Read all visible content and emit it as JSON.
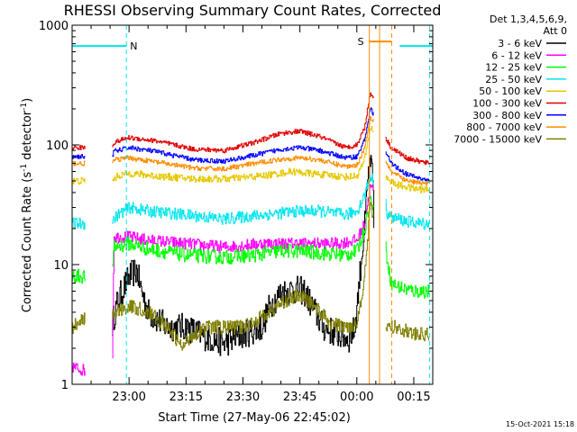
{
  "chart_data": {
    "type": "line",
    "title": "RHESSI Observing Summary Count Rates, Corrected",
    "xlabel": "Start Time (27-May-06 22:45:02)",
    "ylabel_main": "Corrected Count Rate (s",
    "ylabel_sup1": "-1",
    "ylabel_mid": " detector",
    "ylabel_sup2": "-1",
    "ylabel_end": ")",
    "yscale": "log",
    "ylim": [
      1,
      1000
    ],
    "xlim_minutes": [
      0,
      95
    ],
    "x_ticks": [
      {
        "minute": 15,
        "label": "23:00"
      },
      {
        "minute": 30,
        "label": "23:15"
      },
      {
        "minute": 45,
        "label": "23:30"
      },
      {
        "minute": 60,
        "label": "23:45"
      },
      {
        "minute": 75,
        "label": "00:00"
      },
      {
        "minute": 90,
        "label": "00:15"
      }
    ],
    "y_ticks": [
      {
        "value": 1,
        "label": "1"
      },
      {
        "value": 10,
        "label": "10"
      },
      {
        "value": 100,
        "label": "100"
      },
      {
        "value": 1000,
        "label": "1000"
      }
    ],
    "detectors": "Det 1,3,4,5,6,9,",
    "attenuator": "Att 0",
    "timestamp": "15-Oct-2021 15:18",
    "flags": [
      {
        "label": "N",
        "color": "#00e5ee",
        "start": 0,
        "end": 14.3,
        "value": 670
      },
      {
        "label": "N",
        "color": "#00e5ee",
        "start": 86.3,
        "end": 95,
        "value": 670
      },
      {
        "label": "S",
        "color": "#ff8c00",
        "start": 78.3,
        "end": 84.2,
        "value": 730
      }
    ],
    "flag_label_n": "N",
    "flag_label_s": "S",
    "vlines": [
      {
        "minute": 14.3,
        "color": "#00e5ee",
        "dashed": true
      },
      {
        "minute": 94.2,
        "color": "#00e5ee",
        "dashed": true
      },
      {
        "minute": 78.3,
        "color": "#ff8c00",
        "dashed": false
      },
      {
        "minute": 81.0,
        "color": "#ff8c00",
        "dashed": false
      },
      {
        "minute": 84.2,
        "color": "#ff8c00",
        "dashed": true
      }
    ],
    "gaps": [
      [
        3.5,
        10.5
      ],
      [
        79.5,
        82.5
      ]
    ],
    "series": [
      {
        "name": "3 - 6 keV",
        "color": "#000000",
        "keys": [
          [
            10.5,
            3.2
          ],
          [
            12,
            5
          ],
          [
            15,
            8
          ],
          [
            17,
            9
          ],
          [
            18,
            6.5
          ],
          [
            20,
            4
          ],
          [
            25,
            3
          ],
          [
            30,
            3
          ],
          [
            35,
            2.5
          ],
          [
            40,
            2.2
          ],
          [
            45,
            2.6
          ],
          [
            50,
            3
          ],
          [
            52,
            4.5
          ],
          [
            55,
            5.8
          ],
          [
            58,
            6.2
          ],
          [
            61,
            6
          ],
          [
            64,
            4
          ],
          [
            66,
            3
          ],
          [
            70,
            2.6
          ],
          [
            73,
            2.4
          ],
          [
            74.5,
            3
          ],
          [
            76,
            10
          ],
          [
            77,
            20
          ],
          [
            78,
            60
          ],
          [
            79,
            65
          ],
          [
            79.5,
            20
          ]
        ],
        "noise": 0.12
      },
      {
        "name": "6 - 12 keV",
        "color": "#ff00ff",
        "keys": [
          [
            0,
            1.4
          ],
          [
            3.5,
            1.3
          ],
          [
            10.5,
            1.3
          ],
          [
            11,
            17
          ],
          [
            15,
            17
          ],
          [
            20,
            16
          ],
          [
            30,
            15
          ],
          [
            40,
            14
          ],
          [
            50,
            15
          ],
          [
            60,
            15
          ],
          [
            70,
            15
          ],
          [
            75,
            16
          ],
          [
            77,
            22
          ],
          [
            78.5,
            45
          ],
          [
            79.5,
            40
          ]
        ],
        "noise": 0.05
      },
      {
        "name": "12 - 25 keV",
        "color": "#00ff00",
        "keys": [
          [
            0,
            8
          ],
          [
            3.5,
            8
          ],
          [
            10.5,
            8
          ],
          [
            11,
            14
          ],
          [
            15,
            15
          ],
          [
            20,
            13.5
          ],
          [
            30,
            12
          ],
          [
            40,
            11.5
          ],
          [
            48,
            12
          ],
          [
            55,
            13
          ],
          [
            60,
            13
          ],
          [
            65,
            12.5
          ],
          [
            72,
            12
          ],
          [
            75,
            13
          ],
          [
            77,
            20
          ],
          [
            78.5,
            35
          ],
          [
            79.5,
            30
          ],
          [
            82.5,
            14
          ],
          [
            83,
            11
          ],
          [
            84,
            7
          ],
          [
            86,
            6.5
          ],
          [
            90,
            6
          ],
          [
            94,
            6
          ]
        ],
        "noise": 0.06
      },
      {
        "name": "25 - 50 keV",
        "color": "#00e5ee",
        "keys": [
          [
            0,
            22
          ],
          [
            3.5,
            22
          ],
          [
            10.5,
            23
          ],
          [
            12,
            26
          ],
          [
            15,
            30
          ],
          [
            20,
            28
          ],
          [
            30,
            26
          ],
          [
            40,
            24
          ],
          [
            50,
            26
          ],
          [
            60,
            28
          ],
          [
            65,
            28
          ],
          [
            72,
            26
          ],
          [
            75,
            28
          ],
          [
            77,
            38
          ],
          [
            78.5,
            55
          ],
          [
            79.5,
            50
          ],
          [
            82.5,
            32
          ],
          [
            83,
            27
          ],
          [
            84,
            25
          ],
          [
            88,
            23
          ],
          [
            92,
            22
          ],
          [
            94,
            22
          ]
        ],
        "noise": 0.05
      },
      {
        "name": "50 - 100 keV",
        "color": "#e6c800",
        "keys": [
          [
            0,
            50
          ],
          [
            3.5,
            50
          ],
          [
            10.5,
            50
          ],
          [
            12,
            55
          ],
          [
            15,
            58
          ],
          [
            22,
            55
          ],
          [
            32,
            52
          ],
          [
            40,
            52
          ],
          [
            50,
            55
          ],
          [
            58,
            60
          ],
          [
            62,
            58
          ],
          [
            72,
            54
          ],
          [
            75,
            55
          ],
          [
            77,
            75
          ],
          [
            78.5,
            140
          ],
          [
            79.5,
            130
          ],
          [
            82.5,
            55
          ],
          [
            83,
            52
          ],
          [
            85,
            47
          ],
          [
            90,
            43
          ],
          [
            94,
            42
          ]
        ],
        "noise": 0.03
      },
      {
        "name": "100 - 300 keV",
        "color": "#e00000",
        "keys": [
          [
            0,
            95
          ],
          [
            3.5,
            95
          ],
          [
            10.5,
            96
          ],
          [
            11,
            105
          ],
          [
            15,
            115
          ],
          [
            22,
            108
          ],
          [
            32,
            92
          ],
          [
            40,
            90
          ],
          [
            48,
            105
          ],
          [
            55,
            125
          ],
          [
            60,
            130
          ],
          [
            65,
            118
          ],
          [
            72,
            95
          ],
          [
            75,
            100
          ],
          [
            77,
            140
          ],
          [
            78.5,
            270
          ],
          [
            79.5,
            250
          ],
          [
            82.5,
            115
          ],
          [
            84,
            95
          ],
          [
            88,
            78
          ],
          [
            92,
            72
          ],
          [
            94,
            70
          ]
        ],
        "noise": 0.02
      },
      {
        "name": "300 - 800 keV",
        "color": "#0000ff",
        "keys": [
          [
            0,
            80
          ],
          [
            3.5,
            80
          ],
          [
            10.5,
            80
          ],
          [
            11,
            88
          ],
          [
            15,
            95
          ],
          [
            22,
            88
          ],
          [
            32,
            75
          ],
          [
            40,
            73
          ],
          [
            48,
            82
          ],
          [
            55,
            92
          ],
          [
            60,
            95
          ],
          [
            65,
            90
          ],
          [
            72,
            78
          ],
          [
            75,
            80
          ],
          [
            77,
            110
          ],
          [
            78.5,
            200
          ],
          [
            79.5,
            180
          ],
          [
            82.5,
            88
          ],
          [
            84,
            70
          ],
          [
            88,
            57
          ],
          [
            92,
            52
          ],
          [
            94,
            50
          ]
        ],
        "noise": 0.02
      },
      {
        "name": "800 - 7000 keV",
        "color": "#ff8c00",
        "keys": [
          [
            0,
            70
          ],
          [
            3.5,
            70
          ],
          [
            10.5,
            70
          ],
          [
            11,
            75
          ],
          [
            15,
            78
          ],
          [
            22,
            72
          ],
          [
            32,
            64
          ],
          [
            40,
            63
          ],
          [
            48,
            70
          ],
          [
            55,
            76
          ],
          [
            60,
            78
          ],
          [
            65,
            75
          ],
          [
            72,
            66
          ],
          [
            75,
            68
          ],
          [
            77,
            95
          ],
          [
            78.5,
            170
          ],
          [
            79.5,
            160
          ],
          [
            82.5,
            75
          ],
          [
            84,
            60
          ],
          [
            88,
            50
          ],
          [
            92,
            48
          ],
          [
            94,
            47
          ]
        ],
        "noise": 0.02
      },
      {
        "name": "7000 - 15000 keV",
        "color": "#808000",
        "keys": [
          [
            0,
            3
          ],
          [
            2,
            3.5
          ],
          [
            3.5,
            3.5
          ],
          [
            10.5,
            3.5
          ],
          [
            11,
            4
          ],
          [
            15,
            4.5
          ],
          [
            20,
            4
          ],
          [
            24,
            3.2
          ],
          [
            27,
            2.5
          ],
          [
            29,
            2.0
          ],
          [
            31,
            2.5
          ],
          [
            35,
            3
          ],
          [
            45,
            3
          ],
          [
            52,
            4
          ],
          [
            56,
            5
          ],
          [
            60,
            5.5
          ],
          [
            64,
            4.5
          ],
          [
            68,
            3.2
          ],
          [
            72,
            3
          ],
          [
            75,
            3.2
          ],
          [
            77,
            8
          ],
          [
            78.5,
            30
          ],
          [
            79.5,
            25
          ],
          [
            82.5,
            3
          ],
          [
            86,
            3
          ],
          [
            90,
            2.6
          ],
          [
            94,
            2.6
          ]
        ],
        "noise": 0.06
      }
    ]
  }
}
